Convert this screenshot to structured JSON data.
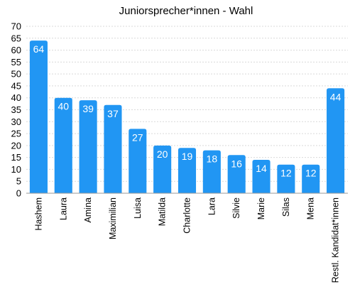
{
  "chart_data": {
    "type": "bar",
    "title": "Juniorsprecher*innen - Wahl",
    "categories": [
      "Hashem",
      "Laura",
      "Amina",
      "Maximilian",
      "Luisa",
      "Matilda",
      "Charlotte",
      "Lara",
      "Silvie",
      "Marie",
      "Silas",
      "Mena",
      "Restl. Kandidat*innen"
    ],
    "values": [
      64,
      40,
      39,
      37,
      27,
      20,
      19,
      18,
      16,
      14,
      12,
      12,
      44
    ],
    "yticks": [
      0,
      5,
      10,
      15,
      20,
      25,
      30,
      35,
      40,
      45,
      50,
      55,
      60,
      65,
      70
    ],
    "ylim": [
      0,
      70
    ],
    "xlabel": "",
    "ylabel": "",
    "grid": true,
    "bar_color": "#2196f3"
  }
}
